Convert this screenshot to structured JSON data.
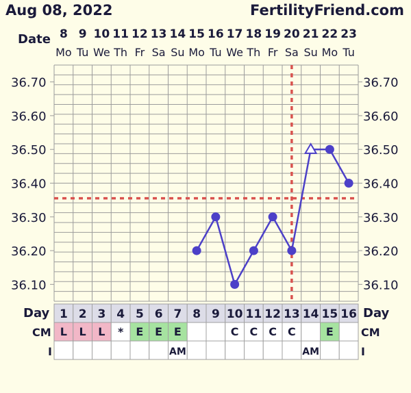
{
  "header": {
    "start_date": "Aug 08, 2022",
    "brand": "FertilityFriend.com"
  },
  "labels": {
    "date": "Date",
    "day": "Day",
    "cm": "CM",
    "intercourse": "I"
  },
  "colors": {
    "background": "#fefde8",
    "grid": "#9b9b9b",
    "line": "#4c40c8",
    "coverline": "#d9534f",
    "ovulation_line": "#d9534f",
    "cell_pink": "#f2b7c7",
    "cell_green": "#a6e3a0",
    "text": "#1a1a3a"
  },
  "chart_data": {
    "type": "line",
    "title": "",
    "xlabel": "",
    "ylabel": "",
    "ylim": [
      36.05,
      36.75
    ],
    "y_ticks": [
      "36.70",
      "36.60",
      "36.50",
      "36.40",
      "36.30",
      "36.20",
      "36.10"
    ],
    "dates": [
      "8",
      "9",
      "10",
      "11",
      "12",
      "13",
      "14",
      "15",
      "16",
      "17",
      "18",
      "19",
      "20",
      "21",
      "22",
      "23"
    ],
    "weekdays": [
      "Mo",
      "Tu",
      "We",
      "Th",
      "Fr",
      "Sa",
      "Su",
      "Mo",
      "Tu",
      "We",
      "Th",
      "Fr",
      "Sa",
      "Su",
      "Mo",
      "Tu"
    ],
    "cycle_days": [
      "1",
      "2",
      "3",
      "4",
      "5",
      "6",
      "7",
      "8",
      "9",
      "10",
      "11",
      "12",
      "13",
      "14",
      "15",
      "16"
    ],
    "series": [
      {
        "points": [
          {
            "day": 8,
            "temp": 36.2,
            "marker": "circle"
          },
          {
            "day": 9,
            "temp": 36.3,
            "marker": "circle"
          },
          {
            "day": 10,
            "temp": 36.1,
            "marker": "circle"
          },
          {
            "day": 11,
            "temp": 36.2,
            "marker": "circle"
          },
          {
            "day": 12,
            "temp": 36.3,
            "marker": "circle"
          },
          {
            "day": 13,
            "temp": 36.2,
            "marker": "circle"
          },
          {
            "day": 14,
            "temp": 36.5,
            "marker": "triangle"
          },
          {
            "day": 15,
            "temp": 36.5,
            "marker": "circle"
          },
          {
            "day": 16,
            "temp": 36.4,
            "marker": "circle"
          }
        ]
      }
    ],
    "coverline": 36.355,
    "ovulation_day": 13,
    "cm": [
      "L",
      "L",
      "L",
      "*",
      "E",
      "E",
      "E",
      "",
      "",
      "C",
      "C",
      "C",
      "C",
      "",
      "E",
      ""
    ],
    "cm_colors": [
      "pink",
      "pink",
      "pink",
      "",
      "green",
      "green",
      "green",
      "",
      "",
      "",
      "",
      "",
      "",
      "",
      "green",
      ""
    ],
    "intercourse": [
      "",
      "",
      "",
      "",
      "",
      "",
      "AM",
      "",
      "",
      "",
      "",
      "",
      "",
      "AM",
      "",
      ""
    ]
  }
}
